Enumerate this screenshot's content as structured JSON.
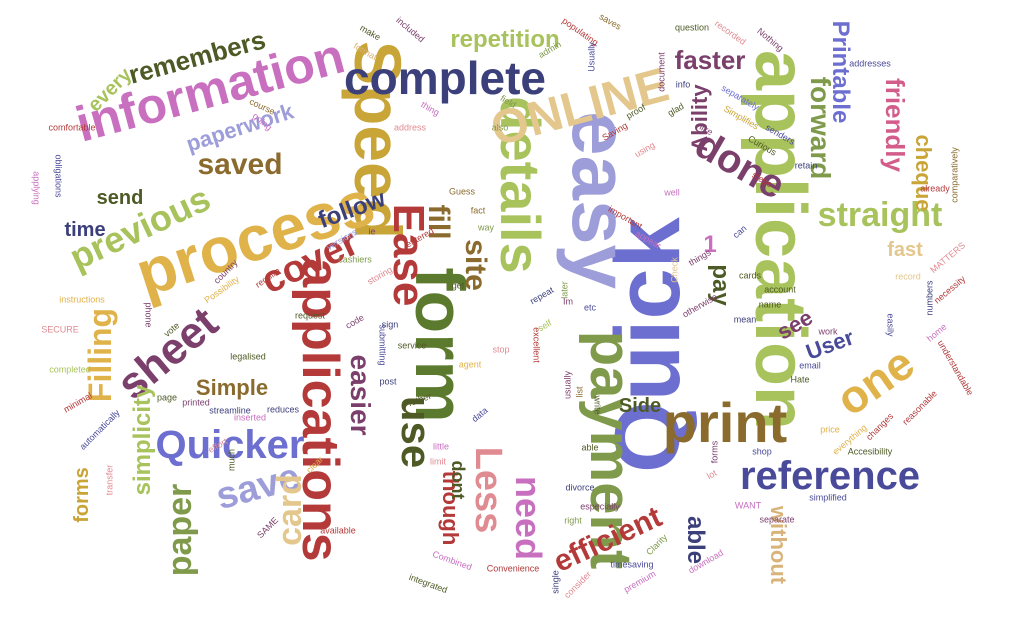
{
  "palette": {
    "periwinkle": "#6c6fcf",
    "lime": "#a8c25c",
    "olive": "#5c7a2e",
    "mustard": "#c9a437",
    "wheat": "#e3c78c",
    "crimson": "#b43a3a",
    "rose": "#e08a91",
    "orchid": "#c86fbf",
    "plum": "#7b3f6c",
    "navy": "#3b3f7a",
    "brown": "#8a6b2d",
    "lilac": "#9d9dd9",
    "sage": "#7f9a4a",
    "gold": "#e0b24a",
    "dark-olive": "#4e5a26",
    "indigo": "#4a4a9a",
    "pink": "#d35d8a",
    "tan": "#d9b47a"
  },
  "words": [
    {
      "text": "Quick"
    },
    {
      "text": "easy"
    },
    {
      "text": "application"
    },
    {
      "text": "form"
    },
    {
      "text": "Speed"
    },
    {
      "text": "payment"
    },
    {
      "text": "process"
    },
    {
      "text": "details"
    },
    {
      "text": "complete"
    },
    {
      "text": "applications"
    },
    {
      "text": "information"
    },
    {
      "text": "print"
    },
    {
      "text": "ONLINE"
    },
    {
      "text": "Ease"
    },
    {
      "text": "reference"
    },
    {
      "text": "Quicker"
    },
    {
      "text": "sheet"
    },
    {
      "text": "cover"
    },
    {
      "text": "use"
    },
    {
      "text": "done"
    },
    {
      "text": "one"
    },
    {
      "text": "previous"
    },
    {
      "text": "Less"
    },
    {
      "text": "straight"
    },
    {
      "text": "save"
    },
    {
      "text": "saved"
    },
    {
      "text": "need"
    },
    {
      "text": "forward"
    },
    {
      "text": "paper"
    },
    {
      "text": "easier"
    },
    {
      "text": "Filling"
    },
    {
      "text": "card"
    },
    {
      "text": "site"
    },
    {
      "text": "efficient"
    },
    {
      "text": "fill"
    },
    {
      "text": "remembers"
    },
    {
      "text": "repetition"
    },
    {
      "text": "friendly"
    },
    {
      "text": "faster"
    },
    {
      "text": "Printable"
    },
    {
      "text": "paperwork"
    },
    {
      "text": "simplicity"
    },
    {
      "text": "cheque"
    },
    {
      "text": "follow"
    },
    {
      "text": "Ability"
    },
    {
      "text": "pay"
    },
    {
      "text": "able"
    },
    {
      "text": "without"
    },
    {
      "text": "though"
    },
    {
      "text": "send"
    },
    {
      "text": "User"
    },
    {
      "text": "Simple"
    },
    {
      "text": "time"
    },
    {
      "text": "forms"
    },
    {
      "text": "every"
    },
    {
      "text": "see"
    },
    {
      "text": "fast"
    },
    {
      "text": "Side"
    },
    {
      "text": "dont"
    },
    {
      "text": "1"
    },
    {
      "text": "addresses"
    },
    {
      "text": "comparatively"
    },
    {
      "text": "Curious"
    },
    {
      "text": "Simplifies"
    },
    {
      "text": "Nothing"
    },
    {
      "text": "senders"
    },
    {
      "text": "separately"
    },
    {
      "text": "saves"
    },
    {
      "text": "document"
    },
    {
      "text": "question"
    },
    {
      "text": "recorded"
    },
    {
      "text": "populating"
    },
    {
      "text": "Usually"
    },
    {
      "text": "admin"
    },
    {
      "text": "included"
    },
    {
      "text": "make"
    },
    {
      "text": "format"
    },
    {
      "text": "field"
    },
    {
      "text": "glad"
    },
    {
      "text": "thing"
    },
    {
      "text": "course"
    },
    {
      "text": "comfortable"
    },
    {
      "text": "obligations"
    },
    {
      "text": "applying"
    },
    {
      "text": "going"
    },
    {
      "text": "address"
    },
    {
      "text": "Saving"
    },
    {
      "text": "proof"
    },
    {
      "text": "using"
    },
    {
      "text": "Guess"
    },
    {
      "text": "fact"
    },
    {
      "text": "way"
    },
    {
      "text": "entered"
    },
    {
      "text": "versions"
    },
    {
      "text": "cashiers"
    },
    {
      "text": "Possibility"
    },
    {
      "text": "country"
    },
    {
      "text": "require"
    },
    {
      "text": "request"
    },
    {
      "text": "code"
    },
    {
      "text": "storing"
    },
    {
      "text": "instructions"
    },
    {
      "text": "SECURE"
    },
    {
      "text": "phone"
    },
    {
      "text": "completed"
    },
    {
      "text": "minimal"
    },
    {
      "text": "automatically"
    },
    {
      "text": "page"
    },
    {
      "text": "legalised"
    },
    {
      "text": "streamline"
    },
    {
      "text": "printed"
    },
    {
      "text": "inserted"
    },
    {
      "text": "reduces"
    },
    {
      "text": "transfer"
    },
    {
      "text": "effort"
    },
    {
      "text": "much"
    },
    {
      "text": "available"
    },
    {
      "text": "submitting"
    },
    {
      "text": "sign"
    },
    {
      "text": "service"
    },
    {
      "text": "rather"
    },
    {
      "text": "post"
    },
    {
      "text": "agent"
    },
    {
      "text": "stop"
    },
    {
      "text": "excellent"
    },
    {
      "text": "self"
    },
    {
      "text": "repeat"
    },
    {
      "text": "later"
    },
    {
      "text": "Check"
    },
    {
      "text": "things"
    },
    {
      "text": "cards"
    },
    {
      "text": "account"
    },
    {
      "text": "record"
    },
    {
      "text": "MATTERS"
    },
    {
      "text": "numbers"
    },
    {
      "text": "necessity"
    },
    {
      "text": "already"
    },
    {
      "text": "easily"
    },
    {
      "text": "home"
    },
    {
      "text": "understandable"
    },
    {
      "text": "reasonable"
    },
    {
      "text": "changes"
    },
    {
      "text": "Accesibility"
    },
    {
      "text": "price"
    },
    {
      "text": "everything"
    },
    {
      "text": "work"
    },
    {
      "text": "email"
    },
    {
      "text": "Hate"
    },
    {
      "text": "shop"
    },
    {
      "text": "forms"
    },
    {
      "text": "simplified"
    },
    {
      "text": "WANT"
    },
    {
      "text": "separate"
    },
    {
      "text": "download"
    },
    {
      "text": "timesaving"
    },
    {
      "text": "Clarity"
    },
    {
      "text": "premium"
    },
    {
      "text": "Convenience"
    },
    {
      "text": "single"
    },
    {
      "text": "consider"
    },
    {
      "text": "especially"
    },
    {
      "text": "divorce"
    },
    {
      "text": "right"
    },
    {
      "text": "Combined"
    },
    {
      "text": "integrated"
    },
    {
      "text": "clear"
    },
    {
      "text": "little"
    },
    {
      "text": "limit"
    },
    {
      "text": "important"
    },
    {
      "text": "appear"
    },
    {
      "text": "list"
    },
    {
      "text": "etc"
    },
    {
      "text": "Im"
    },
    {
      "text": "get"
    },
    {
      "text": "usually"
    },
    {
      "text": "write"
    },
    {
      "text": "data"
    },
    {
      "text": "vote"
    },
    {
      "text": "SAME"
    },
    {
      "text": "lot"
    },
    {
      "text": "otherwise"
    },
    {
      "text": "mean"
    },
    {
      "text": "name"
    },
    {
      "text": "retain"
    },
    {
      "text": "steps"
    },
    {
      "text": "like"
    },
    {
      "text": "info"
    },
    {
      "text": "also"
    },
    {
      "text": "ie"
    },
    {
      "text": "able"
    },
    {
      "text": "well"
    },
    {
      "text": "can"
    }
  ]
}
